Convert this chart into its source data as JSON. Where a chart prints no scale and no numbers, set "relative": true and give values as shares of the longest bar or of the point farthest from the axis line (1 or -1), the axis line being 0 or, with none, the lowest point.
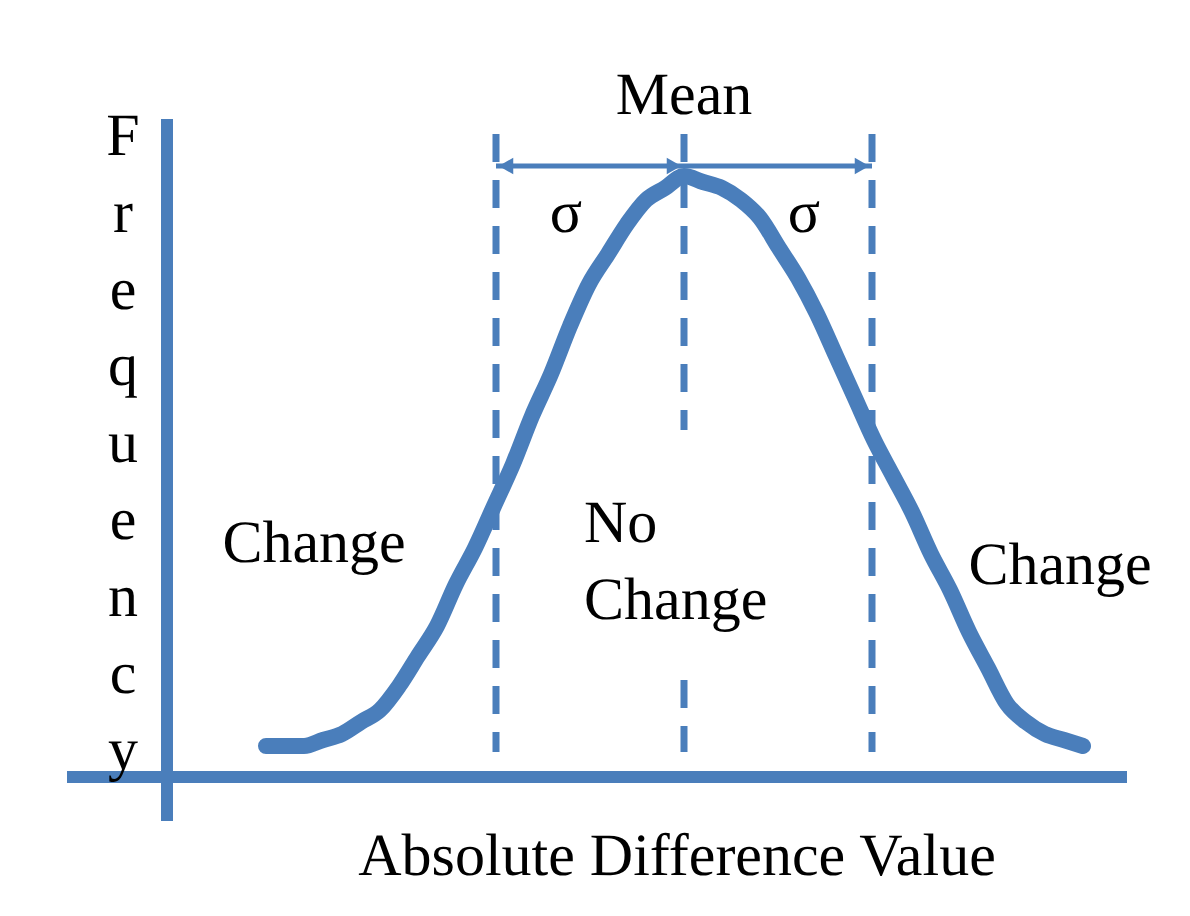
{
  "chart_data": {
    "type": "line",
    "relative": true,
    "xlabel": "Absolute Difference Value",
    "ylabel": "Frequency",
    "categories": [
      null,
      null,
      null,
      null,
      null,
      null,
      null,
      null,
      null,
      null,
      null,
      null,
      null,
      null,
      null,
      null,
      null,
      null,
      null,
      null,
      null,
      null,
      null,
      null,
      null,
      null,
      null,
      null,
      null,
      null,
      null,
      null,
      null,
      null,
      null,
      null,
      null,
      null,
      null,
      null,
      null,
      null,
      null,
      null
    ],
    "series": [
      {
        "color": "#4a7ebb",
        "values": [
          0.05,
          0.05,
          0.05,
          0.06,
          0.07,
          0.09,
          0.11,
          0.15,
          0.2,
          0.25,
          0.32,
          0.38,
          0.45,
          0.52,
          0.6,
          0.67,
          0.75,
          0.82,
          0.87,
          0.92,
          0.96,
          0.98,
          1.0,
          0.99,
          0.98,
          0.96,
          0.93,
          0.88,
          0.83,
          0.77,
          0.7,
          0.63,
          0.56,
          0.5,
          0.44,
          0.37,
          0.31,
          0.24,
          0.18,
          0.12,
          0.09,
          0.07,
          0.06,
          0.05
        ]
      }
    ],
    "annotations": [
      "Mean",
      "σ",
      "σ",
      "Change",
      "No Change",
      "Change"
    ]
  }
}
